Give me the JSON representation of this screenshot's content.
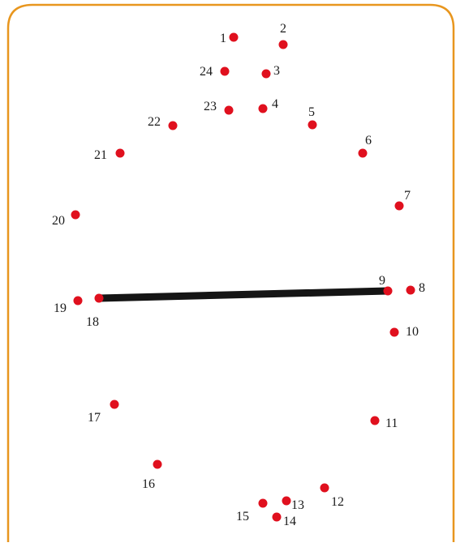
{
  "colors": {
    "frame": "#e8961e",
    "dot": "#e0101e",
    "line": "#151515",
    "label": "#1a1a1a"
  },
  "dots": [
    {
      "label": "1"
    },
    {
      "label": "2"
    },
    {
      "label": "24"
    },
    {
      "label": "3"
    },
    {
      "label": "23"
    },
    {
      "label": "4"
    },
    {
      "label": "22"
    },
    {
      "label": "5"
    },
    {
      "label": "21"
    },
    {
      "label": "6"
    },
    {
      "label": "7"
    },
    {
      "label": "20"
    },
    {
      "label": "9"
    },
    {
      "label": "8"
    },
    {
      "label": "19"
    },
    {
      "label": "18"
    },
    {
      "label": "10"
    },
    {
      "label": "17"
    },
    {
      "label": "11"
    },
    {
      "label": "16"
    },
    {
      "label": "12"
    },
    {
      "label": "15"
    },
    {
      "label": "13"
    },
    {
      "label": "14"
    }
  ],
  "segment": {
    "from": "18",
    "to": "9"
  }
}
